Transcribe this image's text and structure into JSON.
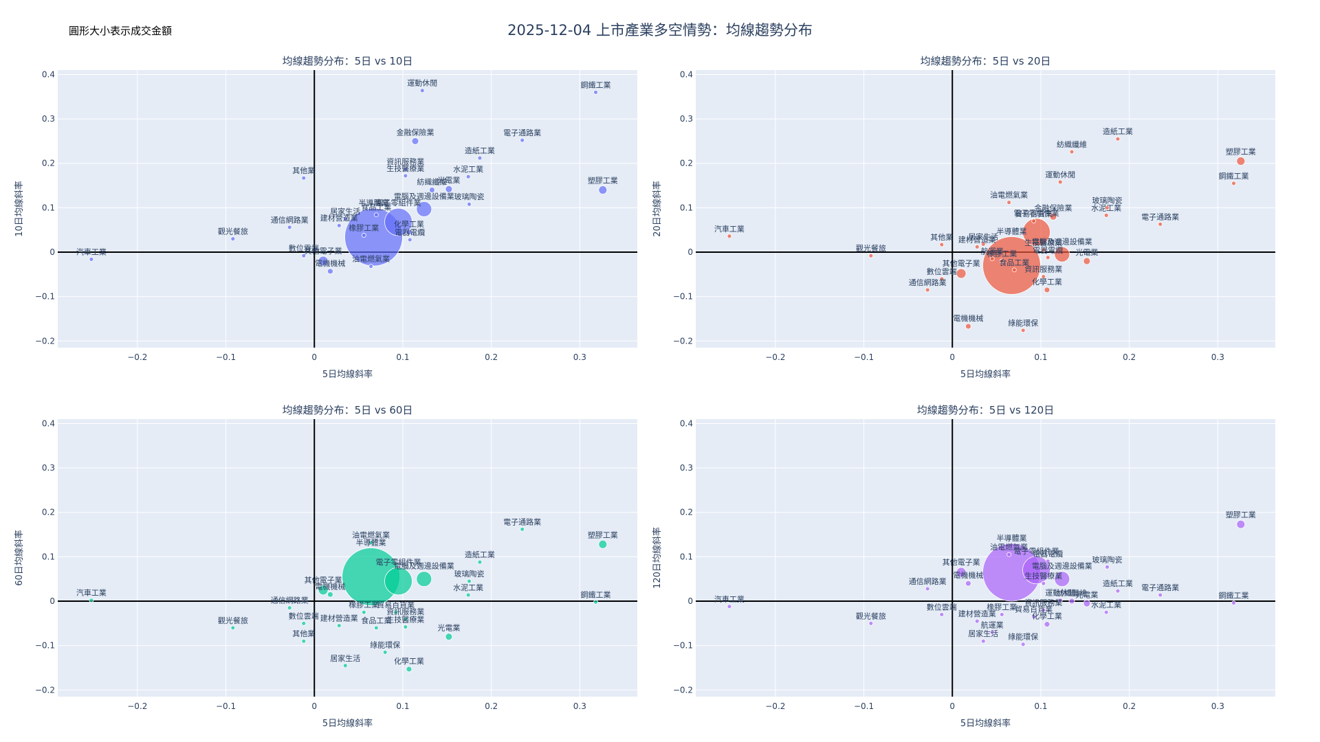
{
  "title": "2025-12-04 上市產業多空情勢：均線趨勢分布",
  "size_note": "圓形大小表示成交金額",
  "chart_data": [
    {
      "type": "scatter",
      "title": "均線趨勢分布：5日 vs 10日",
      "xlabel": "5日均線斜率",
      "ylabel": "10日均線斜率",
      "xlim": [
        -0.29,
        0.365
      ],
      "ylim": [
        -0.215,
        0.41
      ],
      "xticks": [
        -0.2,
        -0.1,
        0,
        0.1,
        0.2,
        0.3
      ],
      "xtick_labels": [
        "−0.2",
        "−0.1",
        "0",
        "0.1",
        "0.2",
        "0.3"
      ],
      "yticks": [
        -0.2,
        -0.1,
        0,
        0.1,
        0.2,
        0.3,
        0.4
      ],
      "ytick_labels": [
        "−0.2",
        "−0.1",
        "0",
        "0.1",
        "0.2",
        "0.3",
        "0.4"
      ],
      "color": "#636efa",
      "points": [
        {
          "label": "運動休閒",
          "x": 0.122,
          "y": 0.364,
          "size": 3
        },
        {
          "label": "鋼鐵工業",
          "x": 0.318,
          "y": 0.36,
          "size": 3
        },
        {
          "label": "金融保險業",
          "x": 0.114,
          "y": 0.25,
          "size": 5
        },
        {
          "label": "電子通路業",
          "x": 0.235,
          "y": 0.252,
          "size": 3
        },
        {
          "label": "造紙工業",
          "x": 0.187,
          "y": 0.212,
          "size": 3
        },
        {
          "label": "資訊服務業",
          "x": 0.103,
          "y": 0.187,
          "size": 3
        },
        {
          "label": "其他業",
          "x": -0.012,
          "y": 0.167,
          "size": 3
        },
        {
          "label": "生技醫療業",
          "x": 0.103,
          "y": 0.172,
          "size": 3
        },
        {
          "label": "水泥工業",
          "x": 0.174,
          "y": 0.17,
          "size": 3
        },
        {
          "label": "塑膠工業",
          "x": 0.326,
          "y": 0.14,
          "size": 6
        },
        {
          "label": "紡織纖維",
          "x": 0.133,
          "y": 0.14,
          "size": 4
        },
        {
          "label": "光電業",
          "x": 0.152,
          "y": 0.142,
          "size": 5
        },
        {
          "label": "玻璃陶瓷",
          "x": 0.175,
          "y": 0.108,
          "size": 3
        },
        {
          "label": "半導體業",
          "x": 0.067,
          "y": 0.034,
          "size": 42
        },
        {
          "label": "電腦及週邊設備業",
          "x": 0.124,
          "y": 0.097,
          "size": 11
        },
        {
          "label": "電子零組件業",
          "x": 0.095,
          "y": 0.068,
          "size": 20
        },
        {
          "label": "居家生活",
          "x": 0.035,
          "y": 0.075,
          "size": 3
        },
        {
          "label": "食品工業",
          "x": 0.07,
          "y": 0.084,
          "size": 3
        },
        {
          "label": "通信網路業",
          "x": -0.028,
          "y": 0.056,
          "size": 3
        },
        {
          "label": "建材營造業",
          "x": 0.028,
          "y": 0.06,
          "size": 3
        },
        {
          "label": "化學工業",
          "x": 0.107,
          "y": 0.045,
          "size": 4
        },
        {
          "label": "觀光餐旅",
          "x": -0.092,
          "y": 0.03,
          "size": 3
        },
        {
          "label": "橡膠工業",
          "x": 0.056,
          "y": 0.038,
          "size": 3
        },
        {
          "label": "電器電纜",
          "x": 0.108,
          "y": 0.028,
          "size": 3
        },
        {
          "label": "汽車工業",
          "x": -0.252,
          "y": -0.016,
          "size": 3
        },
        {
          "label": "數位雲端",
          "x": -0.012,
          "y": -0.008,
          "size": 3
        },
        {
          "label": "其他電子業",
          "x": 0.01,
          "y": -0.02,
          "size": 7
        },
        {
          "label": "電機機械",
          "x": 0.018,
          "y": -0.043,
          "size": 4
        },
        {
          "label": "油電燃氣業",
          "x": 0.064,
          "y": -0.032,
          "size": 3
        }
      ]
    },
    {
      "type": "scatter",
      "title": "均線趨勢分布：5日 vs 20日",
      "xlabel": "5日均線斜率",
      "ylabel": "20日均線斜率",
      "xlim": [
        -0.29,
        0.365
      ],
      "ylim": [
        -0.215,
        0.41
      ],
      "xticks": [
        -0.2,
        -0.1,
        0,
        0.1,
        0.2,
        0.3
      ],
      "xtick_labels": [
        "−0.2",
        "−0.1",
        "0",
        "0.1",
        "0.2",
        "0.3"
      ],
      "yticks": [
        -0.2,
        -0.1,
        0,
        0.1,
        0.2,
        0.3,
        0.4
      ],
      "ytick_labels": [
        "−0.2",
        "−0.1",
        "0",
        "0.1",
        "0.2",
        "0.3",
        "0.4"
      ],
      "color": "#ef553b",
      "points": [
        {
          "label": "造紙工業",
          "x": 0.187,
          "y": 0.255,
          "size": 3
        },
        {
          "label": "紡織纖維",
          "x": 0.135,
          "y": 0.226,
          "size": 3
        },
        {
          "label": "塑膠工業",
          "x": 0.326,
          "y": 0.205,
          "size": 6
        },
        {
          "label": "運動休閒",
          "x": 0.122,
          "y": 0.158,
          "size": 3
        },
        {
          "label": "鋼鐵工業",
          "x": 0.318,
          "y": 0.155,
          "size": 3
        },
        {
          "label": "油電燃氣業",
          "x": 0.064,
          "y": 0.112,
          "size": 3
        },
        {
          "label": "玻璃陶瓷",
          "x": 0.175,
          "y": 0.1,
          "size": 3
        },
        {
          "label": "水泥工業",
          "x": 0.174,
          "y": 0.083,
          "size": 3
        },
        {
          "label": "金融保險業",
          "x": 0.114,
          "y": 0.08,
          "size": 5
        },
        {
          "label": "半導體業",
          "x": 0.067,
          "y": -0.03,
          "size": 42
        },
        {
          "label": "貿易百貨業",
          "x": 0.092,
          "y": 0.07,
          "size": 3
        },
        {
          "label": "電子通路業",
          "x": 0.235,
          "y": 0.063,
          "size": 3
        },
        {
          "label": "電子零組件業",
          "x": 0.095,
          "y": 0.045,
          "size": 20
        },
        {
          "label": "汽車工業",
          "x": -0.252,
          "y": 0.036,
          "size": 3
        },
        {
          "label": "其他業",
          "x": -0.012,
          "y": 0.017,
          "size": 3
        },
        {
          "label": "居家生活",
          "x": 0.035,
          "y": 0.018,
          "size": 3
        },
        {
          "label": "建材營造業",
          "x": 0.028,
          "y": 0.012,
          "size": 3
        },
        {
          "label": "生技醫療業",
          "x": 0.103,
          "y": 0.005,
          "size": 3
        },
        {
          "label": "電腦及週邊設備業",
          "x": 0.124,
          "y": -0.005,
          "size": 11
        },
        {
          "label": "光電業",
          "x": 0.152,
          "y": -0.02,
          "size": 5
        },
        {
          "label": "觀光餐旅",
          "x": -0.092,
          "y": -0.008,
          "size": 3
        },
        {
          "label": "航運業",
          "x": 0.045,
          "y": -0.015,
          "size": 3
        },
        {
          "label": "電器電纜",
          "x": 0.108,
          "y": -0.012,
          "size": 3
        },
        {
          "label": "其他電子業",
          "x": 0.01,
          "y": -0.048,
          "size": 7
        },
        {
          "label": "橡膠工業",
          "x": 0.056,
          "y": -0.02,
          "size": 3
        },
        {
          "label": "食品工業",
          "x": 0.07,
          "y": -0.04,
          "size": 3
        },
        {
          "label": "資訊服務業",
          "x": 0.103,
          "y": -0.055,
          "size": 3
        },
        {
          "label": "數位雲端",
          "x": -0.012,
          "y": -0.06,
          "size": 3
        },
        {
          "label": "化學工業",
          "x": 0.107,
          "y": -0.085,
          "size": 4
        },
        {
          "label": "通信網路業",
          "x": -0.028,
          "y": -0.085,
          "size": 3
        },
        {
          "label": "電機機械",
          "x": 0.018,
          "y": -0.167,
          "size": 4
        },
        {
          "label": "綠能環保",
          "x": 0.08,
          "y": -0.176,
          "size": 3
        }
      ]
    },
    {
      "type": "scatter",
      "title": "均線趨勢分布：5日 vs 60日",
      "xlabel": "5日均線斜率",
      "ylabel": "60日均線斜率",
      "xlim": [
        -0.29,
        0.365
      ],
      "ylim": [
        -0.215,
        0.41
      ],
      "xticks": [
        -0.2,
        -0.1,
        0,
        0.1,
        0.2,
        0.3
      ],
      "xtick_labels": [
        "−0.2",
        "−0.1",
        "0",
        "0.1",
        "0.2",
        "0.3"
      ],
      "yticks": [
        -0.2,
        -0.1,
        0,
        0.1,
        0.2,
        0.3,
        0.4
      ],
      "ytick_labels": [
        "−0.2",
        "−0.1",
        "0",
        "0.1",
        "0.2",
        "0.3",
        "0.4"
      ],
      "color": "#00cc96",
      "points": [
        {
          "label": "電子通路業",
          "x": 0.235,
          "y": 0.162,
          "size": 3
        },
        {
          "label": "半導體業",
          "x": 0.064,
          "y": 0.055,
          "size": 42
        },
        {
          "label": "油電燃氣業",
          "x": 0.064,
          "y": 0.132,
          "size": 3
        },
        {
          "label": "塑膠工業",
          "x": 0.326,
          "y": 0.128,
          "size": 6
        },
        {
          "label": "造紙工業",
          "x": 0.187,
          "y": 0.088,
          "size": 3
        },
        {
          "label": "電子零組件業",
          "x": 0.095,
          "y": 0.045,
          "size": 20
        },
        {
          "label": "電腦及週邊設備業",
          "x": 0.124,
          "y": 0.05,
          "size": 11
        },
        {
          "label": "玻璃陶瓷",
          "x": 0.175,
          "y": 0.045,
          "size": 3
        },
        {
          "label": "其他電子業",
          "x": 0.01,
          "y": 0.025,
          "size": 7
        },
        {
          "label": "電機機械",
          "x": 0.018,
          "y": 0.015,
          "size": 4
        },
        {
          "label": "水泥工業",
          "x": 0.174,
          "y": 0.014,
          "size": 3
        },
        {
          "label": "汽車工業",
          "x": -0.252,
          "y": 0.002,
          "size": 3
        },
        {
          "label": "鋼鐵工業",
          "x": 0.318,
          "y": -0.002,
          "size": 3
        },
        {
          "label": "通信網路業",
          "x": -0.028,
          "y": -0.015,
          "size": 3
        },
        {
          "label": "觀光餐旅",
          "x": -0.092,
          "y": -0.06,
          "size": 3
        },
        {
          "label": "數位雲端",
          "x": -0.012,
          "y": -0.05,
          "size": 3
        },
        {
          "label": "建材營造業",
          "x": 0.028,
          "y": -0.055,
          "size": 3
        },
        {
          "label": "橡膠工業",
          "x": 0.056,
          "y": -0.025,
          "size": 3
        },
        {
          "label": "貿易百貨業",
          "x": 0.092,
          "y": -0.025,
          "size": 3
        },
        {
          "label": "資訊服務業",
          "x": 0.103,
          "y": -0.04,
          "size": 3
        },
        {
          "label": "生技醫療業",
          "x": 0.103,
          "y": -0.058,
          "size": 3
        },
        {
          "label": "食品工業",
          "x": 0.07,
          "y": -0.06,
          "size": 3
        },
        {
          "label": "光電業",
          "x": 0.152,
          "y": -0.08,
          "size": 5
        },
        {
          "label": "其他業",
          "x": -0.012,
          "y": -0.09,
          "size": 3
        },
        {
          "label": "綠能環保",
          "x": 0.08,
          "y": -0.115,
          "size": 3
        },
        {
          "label": "居家生活",
          "x": 0.035,
          "y": -0.145,
          "size": 3
        },
        {
          "label": "化學工業",
          "x": 0.107,
          "y": -0.153,
          "size": 4
        }
      ]
    },
    {
      "type": "scatter",
      "title": "均線趨勢分布：5日 vs 120日",
      "xlabel": "5日均線斜率",
      "ylabel": "120日均線斜率",
      "xlim": [
        -0.29,
        0.365
      ],
      "ylim": [
        -0.215,
        0.41
      ],
      "xticks": [
        -0.2,
        -0.1,
        0,
        0.1,
        0.2,
        0.3
      ],
      "xtick_labels": [
        "−0.2",
        "−0.1",
        "0",
        "0.1",
        "0.2",
        "0.3"
      ],
      "yticks": [
        -0.2,
        -0.1,
        0,
        0.1,
        0.2,
        0.3,
        0.4
      ],
      "ytick_labels": [
        "−0.2",
        "−0.1",
        "0",
        "0.1",
        "0.2",
        "0.3",
        "0.4"
      ],
      "color": "#ab63fa",
      "points": [
        {
          "label": "塑膠工業",
          "x": 0.326,
          "y": 0.173,
          "size": 6
        },
        {
          "label": "半導體業",
          "x": 0.067,
          "y": 0.065,
          "size": 42
        },
        {
          "label": "油電燃氣業",
          "x": 0.064,
          "y": 0.105,
          "size": 3
        },
        {
          "label": "電子零組件業",
          "x": 0.095,
          "y": 0.07,
          "size": 20
        },
        {
          "label": "電器電纜",
          "x": 0.108,
          "y": 0.09,
          "size": 3
        },
        {
          "label": "玻璃陶瓷",
          "x": 0.175,
          "y": 0.077,
          "size": 3
        },
        {
          "label": "電腦及週邊設備業",
          "x": 0.124,
          "y": 0.05,
          "size": 11
        },
        {
          "label": "其他電子業",
          "x": 0.01,
          "y": 0.065,
          "size": 7
        },
        {
          "label": "電機機械",
          "x": 0.018,
          "y": 0.04,
          "size": 4
        },
        {
          "label": "生技醫療業",
          "x": 0.103,
          "y": 0.04,
          "size": 3
        },
        {
          "label": "通信網路業",
          "x": -0.028,
          "y": 0.028,
          "size": 3
        },
        {
          "label": "造紙工業",
          "x": 0.187,
          "y": 0.023,
          "size": 3
        },
        {
          "label": "電子通路業",
          "x": 0.235,
          "y": 0.014,
          "size": 3
        },
        {
          "label": "汽車工業",
          "x": -0.252,
          "y": -0.012,
          "size": 3
        },
        {
          "label": "鋼鐵工業",
          "x": 0.318,
          "y": -0.004,
          "size": 3
        },
        {
          "label": "運動休閒",
          "x": 0.122,
          "y": 0.002,
          "size": 3
        },
        {
          "label": "紡織纖維",
          "x": 0.135,
          "y": 0.0,
          "size": 4
        },
        {
          "label": "光電業",
          "x": 0.152,
          "y": -0.005,
          "size": 5
        },
        {
          "label": "水泥工業",
          "x": 0.174,
          "y": -0.025,
          "size": 3
        },
        {
          "label": "觀光餐旅",
          "x": -0.092,
          "y": -0.05,
          "size": 3
        },
        {
          "label": "數位雲端",
          "x": -0.012,
          "y": -0.03,
          "size": 3
        },
        {
          "label": "建材營造業",
          "x": 0.028,
          "y": -0.045,
          "size": 3
        },
        {
          "label": "橡膠工業",
          "x": 0.056,
          "y": -0.03,
          "size": 3
        },
        {
          "label": "資訊服務業",
          "x": 0.103,
          "y": -0.02,
          "size": 3
        },
        {
          "label": "貿易百貨業",
          "x": 0.092,
          "y": -0.035,
          "size": 3
        },
        {
          "label": "航運業",
          "x": 0.045,
          "y": -0.07,
          "size": 3
        },
        {
          "label": "化學工業",
          "x": 0.107,
          "y": -0.052,
          "size": 4
        },
        {
          "label": "居家生活",
          "x": 0.035,
          "y": -0.09,
          "size": 3
        },
        {
          "label": "綠能環保",
          "x": 0.08,
          "y": -0.097,
          "size": 3
        }
      ]
    }
  ]
}
